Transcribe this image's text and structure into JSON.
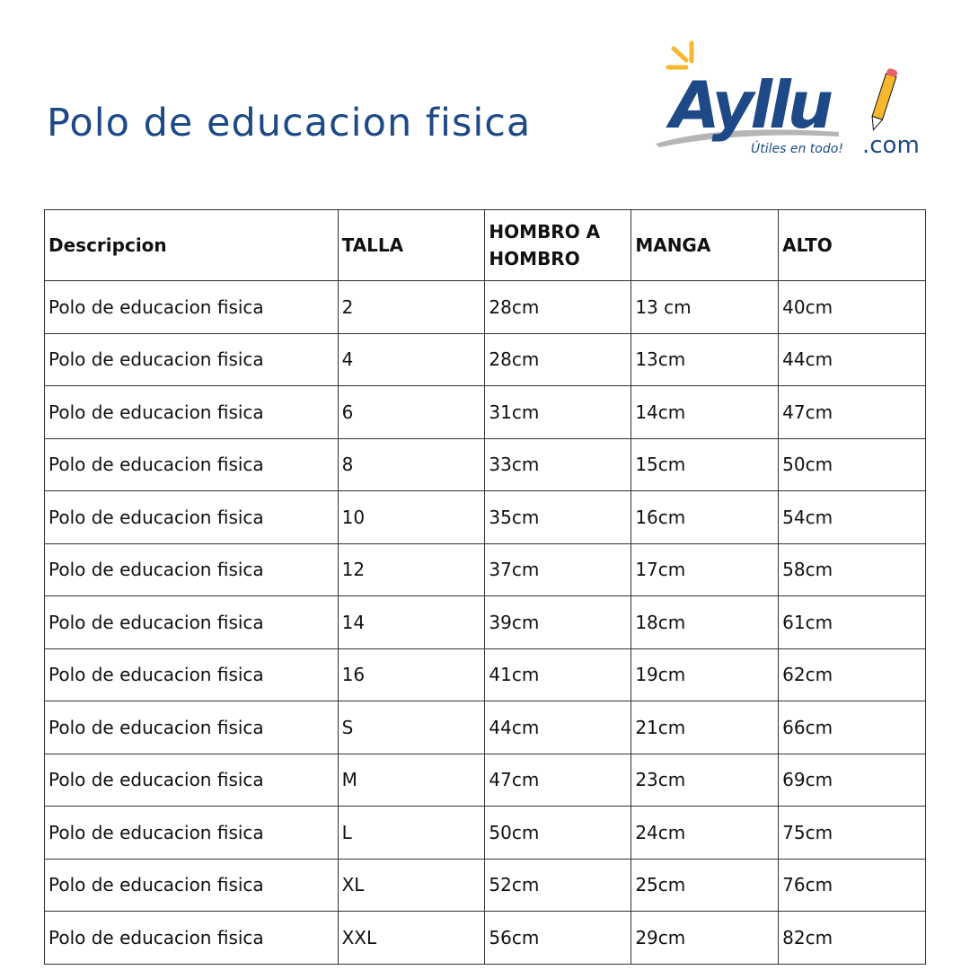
{
  "title": "Polo de educacion fisica",
  "logo": {
    "brand": "Ayllu",
    "tagline": "Útiles en todo!",
    "domain": ".com",
    "colors": {
      "blue": "#1d4a87",
      "yellow": "#f5b82e",
      "red": "#e8606a",
      "gray": "#b5b5b5"
    },
    "icon": "pencil-icon"
  },
  "table": {
    "headers": [
      "Descripcion",
      "TALLA",
      "HOMBRO A HOMBRO",
      "MANGA",
      "ALTO"
    ],
    "rows": [
      [
        "Polo de educacion fisica",
        "2",
        "28cm",
        "13 cm",
        "40cm"
      ],
      [
        "Polo de educacion fisica",
        "4",
        "28cm",
        "13cm",
        "44cm"
      ],
      [
        "Polo de educacion fisica",
        "6",
        "31cm",
        "14cm",
        "47cm"
      ],
      [
        "Polo de educacion fisica",
        "8",
        "33cm",
        "15cm",
        "50cm"
      ],
      [
        "Polo de educacion fisica",
        "10",
        "35cm",
        "16cm",
        "54cm"
      ],
      [
        "Polo de educacion fisica",
        "12",
        "37cm",
        "17cm",
        "58cm"
      ],
      [
        "Polo de educacion fisica",
        "14",
        "39cm",
        "18cm",
        "61cm"
      ],
      [
        "Polo de educacion fisica",
        "16",
        "41cm",
        "19cm",
        "62cm"
      ],
      [
        "Polo de educacion fisica",
        "S",
        "44cm",
        "21cm",
        "66cm"
      ],
      [
        "Polo de educacion fisica",
        "M",
        "47cm",
        "23cm",
        "69cm"
      ],
      [
        "Polo de educacion fisica",
        "L",
        "50cm",
        "24cm",
        "75cm"
      ],
      [
        "Polo de educacion fisica",
        "XL",
        "52cm",
        "25cm",
        "76cm"
      ],
      [
        "Polo de educacion fisica",
        "XXL",
        "56cm",
        "29cm",
        "82cm"
      ]
    ]
  }
}
